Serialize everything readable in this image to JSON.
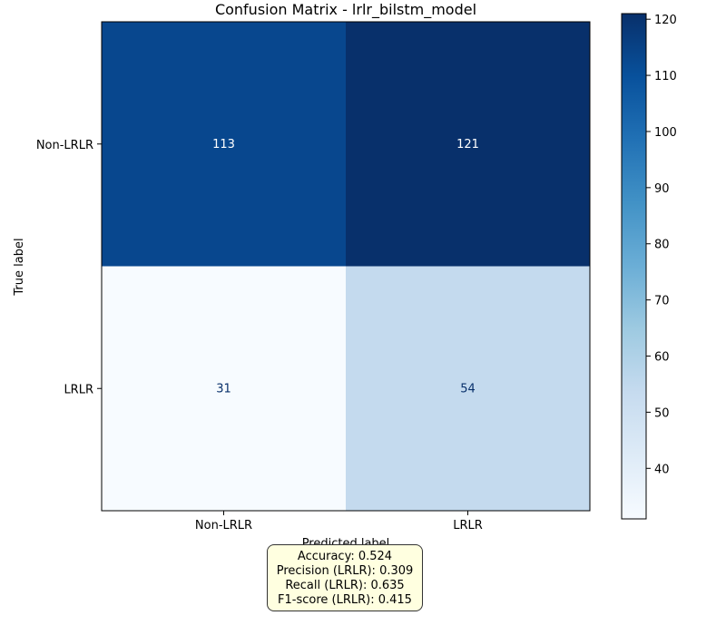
{
  "chart_data": {
    "type": "heatmap",
    "title": "Confusion Matrix - lrlr_bilstm_model",
    "xlabel": "Predicted label",
    "ylabel": "True label",
    "x_categories": [
      "Non-LRLR",
      "LRLR"
    ],
    "y_categories": [
      "Non-LRLR",
      "LRLR"
    ],
    "matrix": [
      [
        113,
        121
      ],
      [
        31,
        54
      ]
    ],
    "colormap": "Blues",
    "colorbar": {
      "range": [
        31,
        121
      ],
      "ticks": [
        40,
        50,
        60,
        70,
        80,
        90,
        100,
        110,
        120
      ]
    },
    "grid": false
  },
  "metrics": {
    "accuracy": "Accuracy: 0.524",
    "precision": "Precision (LRLR): 0.309",
    "recall": "Recall (LRLR): 0.635",
    "f1": "F1-score (LRLR): 0.415"
  }
}
